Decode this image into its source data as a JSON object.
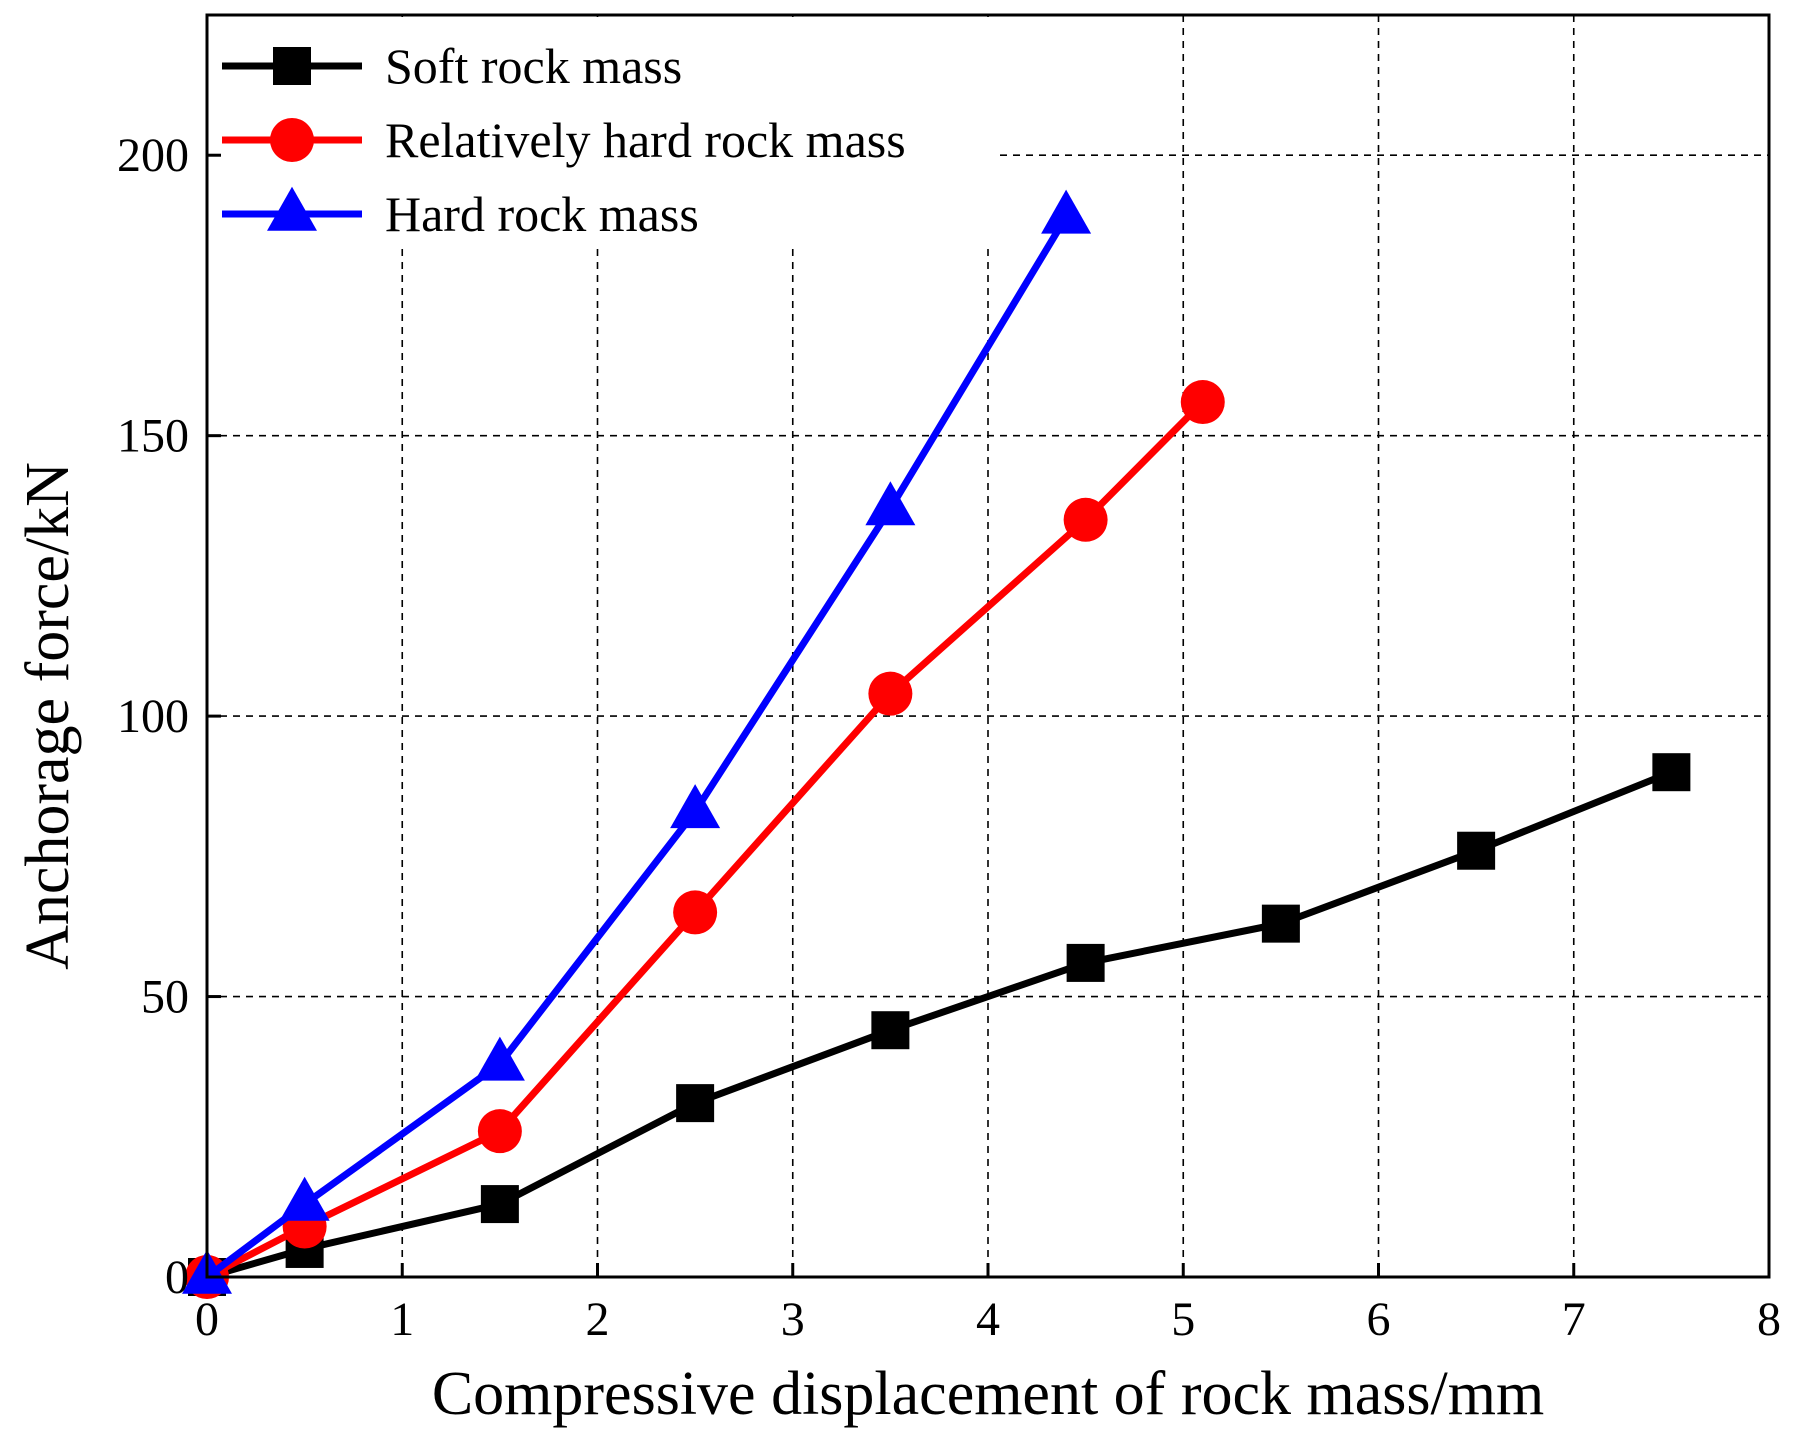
{
  "chart_data": {
    "type": "line",
    "title": "",
    "xlabel": "Compressive displacement of rock mass/mm",
    "ylabel": "Anchorage force/kN",
    "xlim": [
      0,
      8
    ],
    "ylim": [
      0,
      225
    ],
    "xticks": [
      0,
      1,
      2,
      3,
      4,
      5,
      6,
      7,
      8
    ],
    "yticks": [
      0,
      50,
      100,
      150,
      200
    ],
    "grid": "dashed",
    "legend_position": "top-left",
    "series": [
      {
        "name": "Soft rock mass",
        "color": "#000000",
        "marker": "square",
        "x": [
          0,
          0.5,
          1.5,
          2.5,
          3.5,
          4.5,
          5.5,
          6.5,
          7.5
        ],
        "y": [
          0,
          5,
          13,
          31,
          44,
          56,
          63,
          76,
          90
        ]
      },
      {
        "name": "Relatively hard rock mass",
        "color": "#ff0000",
        "marker": "circle",
        "x": [
          0,
          0.5,
          1.5,
          2.5,
          3.5,
          4.5,
          5.1
        ],
        "y": [
          0,
          9,
          26,
          65,
          104,
          135,
          156
        ]
      },
      {
        "name": "Hard rock mass",
        "color": "#0000ff",
        "marker": "triangle",
        "x": [
          0,
          0.5,
          1.5,
          2.5,
          3.5,
          4.4
        ],
        "y": [
          0,
          13,
          38,
          83,
          137,
          189
        ]
      }
    ]
  }
}
